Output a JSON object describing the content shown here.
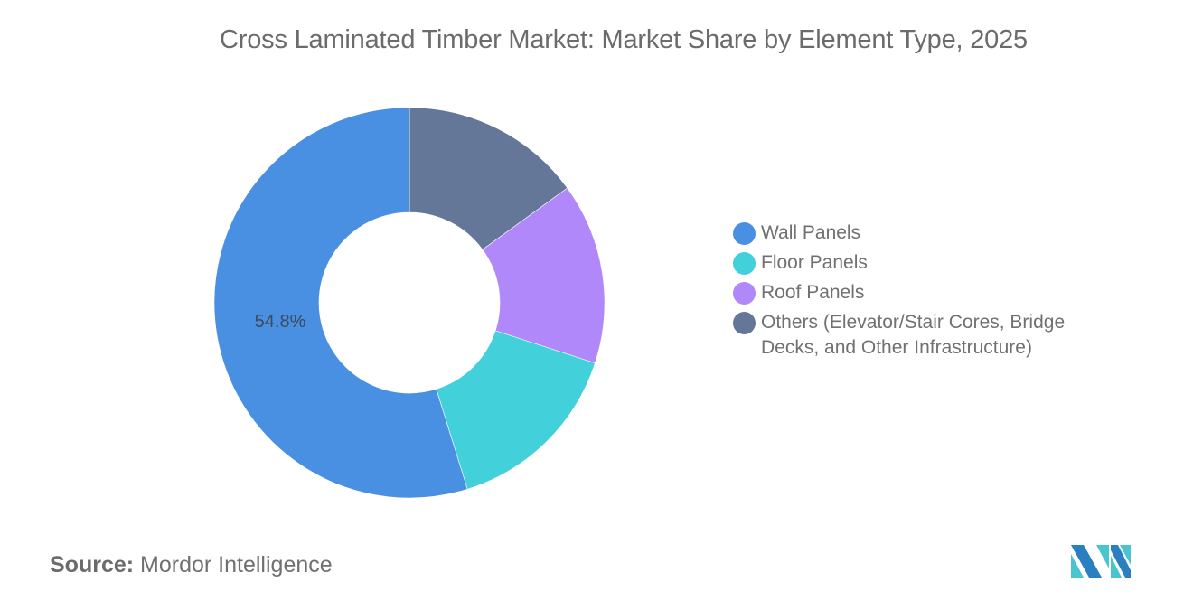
{
  "title": "Cross Laminated Timber Market: Market Share by Element Type, 2025",
  "source": {
    "key": "Source:",
    "value": "Mordor Intelligence"
  },
  "logo": {
    "icon": "mordor-intelligence-logo",
    "colors": [
      "#2a7fc0",
      "#49c5cf"
    ]
  },
  "legend": {
    "items": [
      {
        "label": "Wall Panels",
        "color": "#4a90e2"
      },
      {
        "label": "Floor Panels",
        "color": "#42d0da"
      },
      {
        "label": "Roof Panels",
        "color": "#b088f9"
      },
      {
        "label": "Others (Elevator/Stair Cores, Bridge Decks, and Other Infrastructure)",
        "color": "#657798"
      }
    ]
  },
  "slice_labels": {
    "wall": "54.8%"
  },
  "chart_data": {
    "type": "pie",
    "variant": "donut",
    "title": "Cross Laminated Timber Market: Market Share by Element Type, 2025",
    "categories": [
      "Wall Panels",
      "Floor Panels",
      "Roof Panels",
      "Others (Elevator/Stair Cores, Bridge Decks, and Other Infrastructure)"
    ],
    "values": [
      54.8,
      15.2,
      15.0,
      15.0
    ],
    "colors": [
      "#4a90e2",
      "#42d0da",
      "#b088f9",
      "#657798"
    ],
    "data_labels": {
      "Wall Panels": "54.8%"
    },
    "drawing_order_clockwise_from_top": [
      "Others (Elevator/Stair Cores, Bridge Decks, and Other Infrastructure)",
      "Roof Panels",
      "Floor Panels",
      "Wall Panels"
    ],
    "legend_position": "right",
    "unit": "%"
  }
}
